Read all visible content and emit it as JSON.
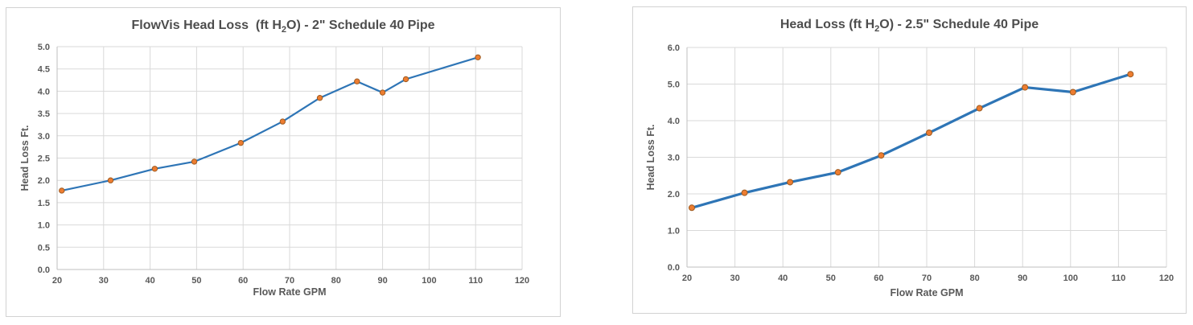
{
  "chart_data": [
    {
      "type": "line",
      "title": "FlowVis Head Loss (ft H2O) - 2\" Schedule 40 Pipe",
      "title_parts": {
        "pre": "FlowVis Head Loss  (ft H",
        "sub": "2",
        "post": "O) - 2\" Schedule 40 Pipe"
      },
      "xlabel": "Flow Rate GPM",
      "ylabel": "Head Loss Ft.",
      "xlim": [
        20,
        120
      ],
      "xtick_step": 10,
      "ylim": [
        0,
        5
      ],
      "ytick_step": 0.5,
      "grid": true,
      "legend": "none",
      "x": [
        21,
        31.5,
        41,
        49.5,
        59.5,
        68.5,
        76.5,
        84.5,
        90,
        95,
        110.5
      ],
      "y": [
        1.77,
        2.0,
        2.26,
        2.42,
        2.84,
        3.32,
        3.85,
        4.22,
        3.97,
        4.27,
        4.76
      ],
      "colors": {
        "line": "#2E75B6",
        "marker_fill": "#ED7D31",
        "marker_stroke": "#9E5B21",
        "grid": "#D9D9D9",
        "axis": "#BFBFBF",
        "tick": "#595959",
        "title": "#4D4D4D"
      }
    },
    {
      "type": "line",
      "title": "Head Loss (ft H2O) - 2.5\" Schedule 40 Pipe",
      "title_parts": {
        "pre": "Head Loss (ft H",
        "sub": "2",
        "post": "O) - 2.5\" Schedule 40 Pipe"
      },
      "xlabel": "Flow Rate GPM",
      "ylabel": "Head Loss Ft.",
      "xlim": [
        20,
        120
      ],
      "xtick_step": 10,
      "ylim": [
        0,
        6
      ],
      "ytick_step": 1,
      "grid": true,
      "legend": "none",
      "x": [
        21,
        32,
        41.5,
        51.5,
        60.5,
        70.5,
        81,
        90.5,
        100.5,
        112.5
      ],
      "y": [
        1.62,
        2.03,
        2.32,
        2.59,
        3.05,
        3.67,
        4.34,
        4.91,
        4.78,
        5.27
      ],
      "colors": {
        "line": "#2E75B6",
        "marker_fill": "#ED7D31",
        "marker_stroke": "#9E5B21",
        "grid": "#D9D9D9",
        "axis": "#BFBFBF",
        "tick": "#595959",
        "title": "#4D4D4D"
      }
    }
  ]
}
